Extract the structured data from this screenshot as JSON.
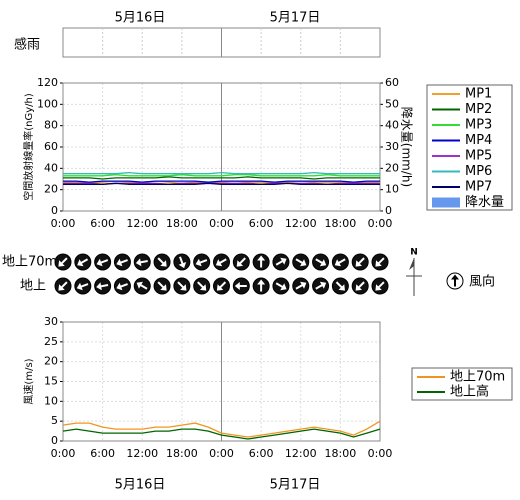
{
  "dates": [
    "5月16日",
    "5月17日"
  ],
  "rain_sensor": {
    "label": "感雨"
  },
  "chart_data": [
    {
      "type": "line",
      "ylabel": "空間放射線量率(nGy/h)",
      "y2label": "降水量(mm/h)",
      "categories": [
        "0:00",
        null,
        null,
        "6:00",
        null,
        null,
        "12:00",
        null,
        null,
        "18:00",
        null,
        null,
        "0:00",
        null,
        null,
        "6:00",
        null,
        null,
        "12:00",
        null,
        null,
        "18:00",
        null,
        null,
        "0:00"
      ],
      "ylim": [
        0,
        120
      ],
      "yticks": [
        0,
        20,
        40,
        60,
        80,
        100,
        120
      ],
      "y2lim": [
        0,
        60
      ],
      "y2ticks": [
        0,
        10,
        20,
        30,
        40,
        50,
        60
      ],
      "grid": true,
      "series": [
        {
          "name": "MP1",
          "color": "#f0a030",
          "values": [
            27,
            27,
            26,
            27,
            28,
            27,
            27,
            28,
            27,
            26,
            27,
            27,
            27,
            28,
            27,
            27,
            26,
            27,
            28,
            27,
            27,
            27,
            26,
            27,
            27
          ]
        },
        {
          "name": "MP2",
          "color": "#006400",
          "values": [
            31,
            31,
            31,
            30,
            31,
            31,
            31,
            31,
            32,
            31,
            31,
            31,
            31,
            31,
            32,
            31,
            31,
            31,
            31,
            30,
            31,
            31,
            31,
            31,
            31
          ]
        },
        {
          "name": "MP3",
          "color": "#33dd33",
          "values": [
            33,
            33,
            33,
            33,
            34,
            33,
            33,
            33,
            33,
            34,
            33,
            33,
            33,
            34,
            34,
            33,
            33,
            33,
            33,
            33,
            34,
            33,
            33,
            33,
            33
          ]
        },
        {
          "name": "MP4",
          "color": "#0000cc",
          "values": [
            28,
            28,
            27,
            28,
            28,
            28,
            27,
            28,
            28,
            28,
            28,
            27,
            28,
            28,
            28,
            28,
            27,
            28,
            28,
            28,
            28,
            28,
            27,
            28,
            28
          ]
        },
        {
          "name": "MP5",
          "color": "#9933cc",
          "values": [
            26,
            26,
            26,
            25,
            26,
            26,
            26,
            26,
            25,
            26,
            26,
            26,
            26,
            26,
            26,
            25,
            26,
            26,
            26,
            26,
            25,
            26,
            26,
            26,
            26
          ]
        },
        {
          "name": "MP6",
          "color": "#33bbbb",
          "values": [
            35,
            35,
            35,
            35,
            35,
            36,
            35,
            35,
            35,
            35,
            35,
            35,
            36,
            35,
            35,
            35,
            35,
            35,
            35,
            36,
            35,
            35,
            35,
            35,
            35
          ]
        },
        {
          "name": "MP7",
          "color": "#000066",
          "values": [
            25,
            25,
            25,
            25,
            26,
            25,
            25,
            25,
            25,
            25,
            25,
            26,
            25,
            25,
            25,
            25,
            25,
            26,
            25,
            25,
            25,
            25,
            25,
            25,
            25
          ]
        },
        {
          "name": "降水量",
          "color": "#6699ee",
          "axis": "y2",
          "type": "bar",
          "values": [
            0,
            0,
            0,
            0,
            0,
            0,
            0,
            0,
            0,
            0,
            0,
            0,
            0,
            0,
            0,
            0,
            0,
            0,
            0,
            0,
            0,
            0,
            0,
            0,
            0
          ]
        }
      ]
    },
    {
      "type": "wind_direction",
      "legend_label": "風向",
      "compass_label": "N",
      "rows": [
        {
          "name": "地上70m",
          "values": [
            225,
            240,
            250,
            250,
            260,
            135,
            160,
            250,
            240,
            225,
            0,
            60,
            120,
            120,
            240,
            225,
            225
          ]
        },
        {
          "name": "地上",
          "values": [
            225,
            250,
            260,
            250,
            300,
            135,
            135,
            135,
            225,
            270,
            0,
            120,
            60,
            60,
            135,
            225,
            225
          ]
        }
      ]
    },
    {
      "type": "line",
      "ylabel": "風速(m/s)",
      "categories": [
        "0:00",
        null,
        null,
        "6:00",
        null,
        null,
        "12:00",
        null,
        null,
        "18:00",
        null,
        null,
        "0:00",
        null,
        null,
        "6:00",
        null,
        null,
        "12:00",
        null,
        null,
        "18:00",
        null,
        null,
        "0:00"
      ],
      "ylim": [
        0,
        30
      ],
      "yticks": [
        0,
        5,
        10,
        15,
        20,
        25,
        30
      ],
      "grid": true,
      "series": [
        {
          "name": "地上70m",
          "color": "#f0961e",
          "values": [
            4,
            4.5,
            4.5,
            3.5,
            3,
            3,
            3,
            3.5,
            3.5,
            4,
            4.5,
            3.5,
            2,
            1.5,
            1,
            1.5,
            2,
            2.5,
            3,
            3.5,
            3,
            2.5,
            1.5,
            3,
            5
          ]
        },
        {
          "name": "地上高",
          "color": "#006400",
          "values": [
            2.5,
            3,
            2.5,
            2,
            2,
            2,
            2,
            2.5,
            2.5,
            3,
            3,
            2.5,
            1.5,
            1,
            0.5,
            1,
            1.5,
            2,
            2.5,
            3,
            2.5,
            2,
            1,
            2,
            3
          ]
        }
      ]
    }
  ]
}
